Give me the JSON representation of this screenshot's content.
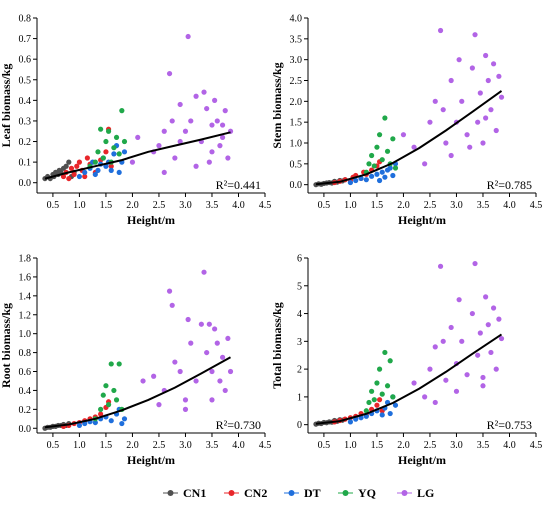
{
  "series_colors": {
    "CN1": "#505050",
    "CN2": "#e8262a",
    "DT": "#1f6fdc",
    "YQ": "#20a84a",
    "LG": "#b264e6"
  },
  "legend": [
    "CN1",
    "CN2",
    "DT",
    "YQ",
    "LG"
  ],
  "chart_data": [
    {
      "type": "scatter",
      "title": "",
      "xlabel": "Height/m",
      "ylabel": "Leaf biomass/kg",
      "xlim": [
        0.2,
        4.5
      ],
      "xticks": [
        0.5,
        1.0,
        1.5,
        2.0,
        2.5,
        3.0,
        3.5,
        4.0,
        4.5
      ],
      "ylim": [
        -0.05,
        0.8
      ],
      "yticks": [
        0.0,
        0.1,
        0.2,
        0.3,
        0.4,
        0.5,
        0.6,
        0.7,
        0.8
      ],
      "ytick_labels": [
        "0.0",
        "0.1",
        "0.2",
        "0.3",
        "0.4",
        "0.5",
        "0.6",
        "0.7",
        "0.8"
      ],
      "annotation": "R²=0.441",
      "fit": {
        "x": [
          0.35,
          0.8,
          1.3,
          1.8,
          2.3,
          2.8,
          3.3,
          3.85
        ],
        "y": [
          0.02,
          0.05,
          0.08,
          0.11,
          0.15,
          0.18,
          0.21,
          0.245
        ]
      },
      "series": [
        {
          "name": "CN1",
          "x": [
            0.35,
            0.4,
            0.45,
            0.5,
            0.52,
            0.55,
            0.6,
            0.62,
            0.65,
            0.7,
            0.75,
            0.8,
            0.85,
            0.9
          ],
          "y": [
            0.02,
            0.03,
            0.02,
            0.04,
            0.03,
            0.05,
            0.04,
            0.06,
            0.05,
            0.07,
            0.08,
            0.1,
            0.03,
            0.05
          ]
        },
        {
          "name": "CN2",
          "x": [
            0.7,
            0.75,
            0.8,
            0.85,
            0.9,
            0.95,
            1.0,
            1.05,
            1.1,
            1.15,
            1.2,
            1.3,
            1.4,
            1.5,
            1.55,
            1.6
          ],
          "y": [
            0.03,
            0.05,
            0.02,
            0.07,
            0.04,
            0.08,
            0.1,
            0.06,
            0.03,
            0.12,
            0.09,
            0.05,
            0.11,
            0.15,
            0.26,
            0.08
          ]
        },
        {
          "name": "DT",
          "x": [
            1.0,
            1.1,
            1.2,
            1.25,
            1.3,
            1.35,
            1.4,
            1.45,
            1.5,
            1.55,
            1.6,
            1.65,
            1.7,
            1.75,
            1.8,
            1.85
          ],
          "y": [
            0.03,
            0.05,
            0.07,
            0.1,
            0.04,
            0.06,
            0.09,
            0.12,
            0.08,
            0.1,
            0.06,
            0.14,
            0.18,
            0.05,
            0.1,
            0.15
          ]
        },
        {
          "name": "YQ",
          "x": [
            1.2,
            1.3,
            1.35,
            1.4,
            1.45,
            1.5,
            1.55,
            1.6,
            1.65,
            1.7,
            1.75,
            1.8,
            1.85
          ],
          "y": [
            0.08,
            0.1,
            0.15,
            0.26,
            0.12,
            0.2,
            0.25,
            0.1,
            0.17,
            0.22,
            0.14,
            0.35,
            0.2
          ]
        },
        {
          "name": "LG",
          "x": [
            2.0,
            2.1,
            2.4,
            2.5,
            2.6,
            2.7,
            2.75,
            2.8,
            2.9,
            3.0,
            3.05,
            3.1,
            3.2,
            3.3,
            3.35,
            3.4,
            3.45,
            3.5,
            3.55,
            3.6,
            3.65,
            3.7,
            3.75,
            3.8,
            3.85,
            2.6,
            2.9,
            3.2,
            3.5,
            3.7
          ],
          "y": [
            0.1,
            0.22,
            0.15,
            0.18,
            0.25,
            0.53,
            0.3,
            0.12,
            0.38,
            0.25,
            0.71,
            0.3,
            0.42,
            0.2,
            0.44,
            0.36,
            0.1,
            0.28,
            0.4,
            0.3,
            0.18,
            0.22,
            0.35,
            0.12,
            0.25,
            0.05,
            0.2,
            0.08,
            0.15,
            0.28
          ]
        }
      ]
    },
    {
      "type": "scatter",
      "title": "",
      "xlabel": "Height/m",
      "ylabel": "Stem biomass/kg",
      "xlim": [
        0.2,
        4.5
      ],
      "xticks": [
        0.5,
        1.0,
        1.5,
        2.0,
        2.5,
        3.0,
        3.5,
        4.0,
        4.5
      ],
      "ylim": [
        -0.2,
        4.0
      ],
      "yticks": [
        0.0,
        0.5,
        1.0,
        1.5,
        2.0,
        2.5,
        3.0,
        3.5,
        4.0
      ],
      "ytick_labels": [
        "0.0",
        "0.5",
        "1.0",
        "1.5",
        "2.0",
        "2.5",
        "3.0",
        "3.5",
        "4.0"
      ],
      "annotation": "R²=0.785",
      "fit": {
        "x": [
          0.35,
          0.8,
          1.3,
          1.8,
          2.3,
          2.8,
          3.3,
          3.85
        ],
        "y": [
          0.01,
          0.07,
          0.25,
          0.52,
          0.88,
          1.3,
          1.75,
          2.25
        ]
      },
      "series": [
        {
          "name": "CN1",
          "x": [
            0.35,
            0.4,
            0.45,
            0.5,
            0.55,
            0.6,
            0.65,
            0.7,
            0.75,
            0.8,
            0.85,
            0.9
          ],
          "y": [
            0.0,
            0.02,
            0.01,
            0.03,
            0.04,
            0.05,
            0.04,
            0.08,
            0.06,
            0.1,
            0.09,
            0.12
          ]
        },
        {
          "name": "CN2",
          "x": [
            0.7,
            0.8,
            0.9,
            1.0,
            1.05,
            1.1,
            1.2,
            1.25,
            1.3,
            1.4,
            1.5,
            1.55
          ],
          "y": [
            0.05,
            0.08,
            0.12,
            0.1,
            0.18,
            0.22,
            0.15,
            0.3,
            0.25,
            0.35,
            0.45,
            0.55
          ]
        },
        {
          "name": "DT",
          "x": [
            1.0,
            1.1,
            1.2,
            1.3,
            1.4,
            1.5,
            1.55,
            1.6,
            1.65,
            1.7,
            1.75,
            1.8,
            1.85
          ],
          "y": [
            0.05,
            0.1,
            0.15,
            0.12,
            0.2,
            0.25,
            0.1,
            0.3,
            0.18,
            0.35,
            0.4,
            0.22,
            0.5
          ]
        },
        {
          "name": "YQ",
          "x": [
            1.3,
            1.35,
            1.4,
            1.45,
            1.5,
            1.55,
            1.6,
            1.65,
            1.7,
            1.75,
            1.8,
            1.85
          ],
          "y": [
            0.3,
            0.5,
            0.7,
            0.45,
            0.9,
            1.2,
            0.6,
            1.6,
            0.8,
            0.5,
            1.1,
            0.4
          ]
        },
        {
          "name": "LG",
          "x": [
            2.0,
            2.2,
            2.5,
            2.6,
            2.7,
            2.75,
            2.8,
            2.9,
            3.0,
            3.05,
            3.1,
            3.2,
            3.3,
            3.35,
            3.4,
            3.45,
            3.5,
            3.55,
            3.6,
            3.65,
            3.7,
            3.75,
            3.8,
            3.85,
            2.4,
            2.9,
            3.25,
            3.55
          ],
          "y": [
            1.2,
            0.9,
            1.5,
            2.0,
            3.7,
            1.8,
            1.0,
            2.5,
            1.5,
            3.0,
            2.0,
            1.2,
            2.8,
            3.6,
            1.5,
            2.2,
            1.0,
            3.1,
            2.5,
            1.8,
            2.9,
            1.3,
            2.6,
            2.1,
            0.5,
            0.7,
            0.9,
            1.6
          ]
        }
      ]
    },
    {
      "type": "scatter",
      "title": "",
      "xlabel": "Height/m",
      "ylabel": "Root biomass/kg",
      "xlim": [
        0.2,
        4.5
      ],
      "xticks": [
        0.5,
        1.0,
        1.5,
        2.0,
        2.5,
        3.0,
        3.5,
        4.0,
        4.5
      ],
      "ylim": [
        -0.05,
        1.8
      ],
      "yticks": [
        0.0,
        0.2,
        0.4,
        0.6,
        0.8,
        1.0,
        1.2,
        1.4,
        1.6,
        1.8
      ],
      "ytick_labels": [
        "0.0",
        "0.2",
        "0.4",
        "0.6",
        "0.8",
        "1.0",
        "1.2",
        "1.4",
        "1.6",
        "1.8"
      ],
      "annotation": "R²=0.730",
      "fit": {
        "x": [
          0.35,
          0.8,
          1.3,
          1.8,
          2.3,
          2.8,
          3.3,
          3.85
        ],
        "y": [
          0.01,
          0.04,
          0.1,
          0.19,
          0.3,
          0.43,
          0.58,
          0.75
        ]
      },
      "series": [
        {
          "name": "CN1",
          "x": [
            0.35,
            0.4,
            0.45,
            0.5,
            0.55,
            0.6,
            0.65,
            0.7,
            0.75,
            0.8
          ],
          "y": [
            0.0,
            0.01,
            0.01,
            0.02,
            0.02,
            0.03,
            0.03,
            0.04,
            0.03,
            0.05
          ]
        },
        {
          "name": "CN2",
          "x": [
            0.7,
            0.8,
            0.9,
            1.0,
            1.1,
            1.2,
            1.3,
            1.4,
            1.5,
            1.55
          ],
          "y": [
            0.02,
            0.03,
            0.05,
            0.06,
            0.08,
            0.1,
            0.12,
            0.15,
            0.22,
            0.28
          ]
        },
        {
          "name": "DT",
          "x": [
            1.0,
            1.1,
            1.2,
            1.3,
            1.4,
            1.5,
            1.6,
            1.7,
            1.75,
            1.8,
            1.85
          ],
          "y": [
            0.03,
            0.05,
            0.07,
            0.06,
            0.1,
            0.12,
            0.08,
            0.15,
            0.2,
            0.05,
            0.1
          ]
        },
        {
          "name": "YQ",
          "x": [
            1.3,
            1.4,
            1.45,
            1.5,
            1.55,
            1.6,
            1.65,
            1.7,
            1.75,
            1.8
          ],
          "y": [
            0.1,
            0.2,
            0.35,
            0.45,
            0.25,
            0.68,
            0.4,
            0.3,
            0.68,
            0.2
          ]
        },
        {
          "name": "LG",
          "x": [
            2.2,
            2.4,
            2.6,
            2.7,
            2.75,
            2.8,
            2.9,
            3.0,
            3.05,
            3.1,
            3.2,
            3.3,
            3.35,
            3.4,
            3.45,
            3.5,
            3.55,
            3.6,
            3.65,
            3.7,
            3.75,
            3.8,
            3.85,
            2.5,
            3.0,
            3.5
          ],
          "y": [
            0.5,
            0.55,
            0.4,
            1.45,
            1.3,
            0.7,
            0.6,
            0.3,
            1.15,
            0.9,
            0.5,
            1.1,
            1.65,
            0.8,
            1.1,
            0.6,
            1.05,
            0.9,
            0.5,
            0.75,
            0.4,
            0.95,
            0.6,
            0.25,
            0.2,
            0.3
          ]
        }
      ]
    },
    {
      "type": "scatter",
      "title": "",
      "xlabel": "Height/m",
      "ylabel": "Total biomass/kg",
      "xlim": [
        0.2,
        4.5
      ],
      "xticks": [
        0.5,
        1.0,
        1.5,
        2.0,
        2.5,
        3.0,
        3.5,
        4.0,
        4.5
      ],
      "ylim": [
        -0.3,
        6.0
      ],
      "yticks": [
        0,
        1,
        2,
        3,
        4,
        5,
        6
      ],
      "ytick_labels": [
        "0",
        "1",
        "2",
        "3",
        "4",
        "5",
        "6"
      ],
      "annotation": "R²=0.753",
      "fit": {
        "x": [
          0.35,
          0.8,
          1.3,
          1.8,
          2.3,
          2.8,
          3.3,
          3.85
        ],
        "y": [
          0.03,
          0.13,
          0.39,
          0.78,
          1.3,
          1.9,
          2.55,
          3.25
        ]
      },
      "series": [
        {
          "name": "CN1",
          "x": [
            0.35,
            0.4,
            0.45,
            0.5,
            0.55,
            0.6,
            0.65,
            0.7,
            0.75,
            0.8,
            0.85
          ],
          "y": [
            0.02,
            0.05,
            0.04,
            0.08,
            0.07,
            0.1,
            0.09,
            0.15,
            0.12,
            0.18,
            0.16
          ]
        },
        {
          "name": "CN2",
          "x": [
            0.7,
            0.8,
            0.9,
            1.0,
            1.1,
            1.2,
            1.3,
            1.4,
            1.5,
            1.55,
            1.6
          ],
          "y": [
            0.1,
            0.15,
            0.2,
            0.25,
            0.3,
            0.4,
            0.35,
            0.55,
            0.7,
            0.9,
            0.5
          ]
        },
        {
          "name": "DT",
          "x": [
            1.0,
            1.1,
            1.2,
            1.3,
            1.4,
            1.5,
            1.6,
            1.65,
            1.7,
            1.75,
            1.8,
            1.85
          ],
          "y": [
            0.1,
            0.2,
            0.25,
            0.3,
            0.4,
            0.5,
            0.35,
            0.6,
            0.8,
            0.4,
            1.0,
            0.7
          ]
        },
        {
          "name": "YQ",
          "x": [
            1.3,
            1.35,
            1.4,
            1.45,
            1.5,
            1.55,
            1.6,
            1.65,
            1.7,
            1.75,
            1.8
          ],
          "y": [
            0.5,
            0.8,
            1.2,
            0.9,
            1.5,
            2.0,
            1.1,
            2.6,
            1.4,
            2.3,
            1.0
          ]
        },
        {
          "name": "LG",
          "x": [
            2.2,
            2.4,
            2.5,
            2.6,
            2.7,
            2.75,
            2.8,
            2.9,
            3.0,
            3.05,
            3.1,
            3.2,
            3.3,
            3.35,
            3.4,
            3.45,
            3.5,
            3.55,
            3.6,
            3.65,
            3.7,
            3.75,
            3.8,
            3.85,
            2.6,
            3.0,
            3.5
          ],
          "y": [
            1.5,
            1.0,
            2.0,
            2.8,
            5.7,
            3.0,
            1.6,
            3.5,
            2.2,
            4.5,
            3.0,
            1.8,
            4.0,
            5.8,
            2.5,
            3.3,
            1.7,
            4.6,
            3.6,
            2.6,
            4.2,
            2.0,
            3.8,
            3.1,
            0.8,
            1.2,
            1.4
          ]
        }
      ]
    }
  ]
}
